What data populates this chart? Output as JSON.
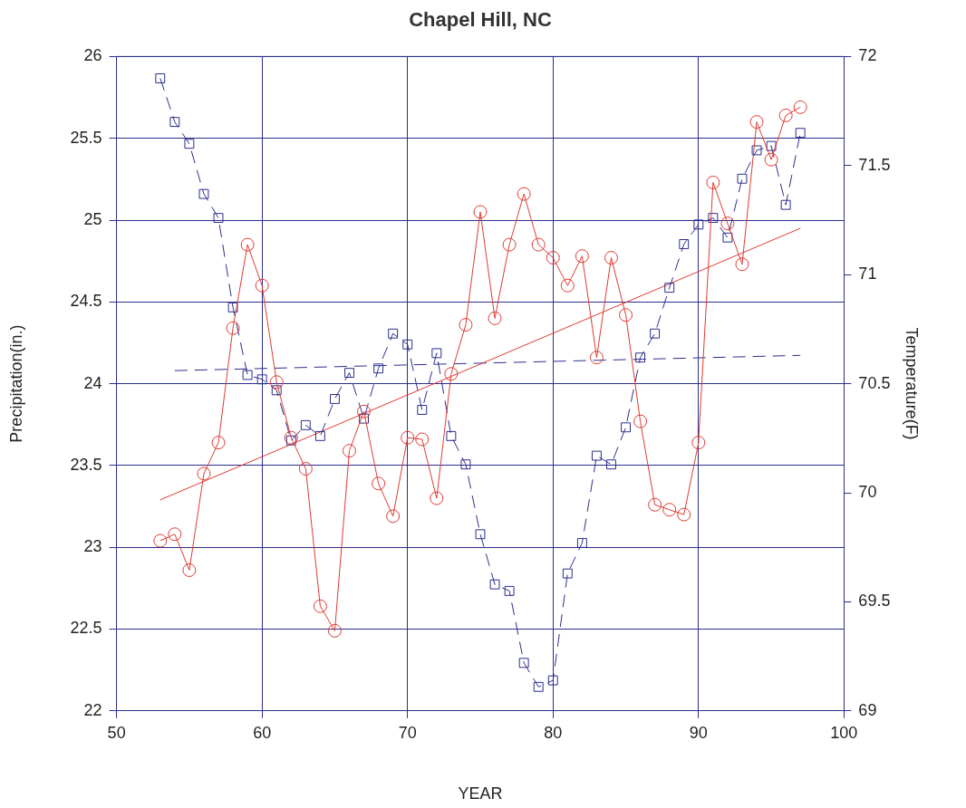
{
  "chart_data": {
    "type": "line",
    "title": "Chapel Hill, NC",
    "xlabel": "YEAR",
    "ylabel": "Precipitation(in.)",
    "y2label": "Temperature(F)",
    "xlim": [
      50,
      100
    ],
    "xticks": [
      50,
      60,
      70,
      80,
      90,
      100
    ],
    "ylim": [
      22,
      26
    ],
    "yticks": [
      22,
      22.5,
      23,
      23.5,
      24,
      24.5,
      25,
      25.5,
      26
    ],
    "y2lim": [
      69,
      72
    ],
    "y2ticks": [
      69,
      69.5,
      70,
      70.5,
      71,
      71.5,
      72
    ],
    "grid": true,
    "legend": false,
    "x": [
      53,
      54,
      55,
      56,
      57,
      58,
      59,
      60,
      61,
      62,
      63,
      64,
      65,
      66,
      67,
      68,
      69,
      70,
      71,
      72,
      73,
      74,
      75,
      76,
      77,
      78,
      79,
      80,
      81,
      82,
      83,
      84,
      85,
      86,
      87,
      88,
      89,
      90,
      91,
      92,
      93,
      94,
      95,
      96,
      97
    ],
    "series": [
      {
        "color": "#e03a32",
        "marker": "circle",
        "line_style": "solid",
        "values": [
          23.04,
          23.08,
          22.86,
          23.45,
          23.64,
          24.34,
          24.85,
          24.6,
          24.01,
          23.67,
          23.48,
          22.64,
          22.49,
          23.59,
          23.83,
          23.39,
          23.19,
          23.67,
          23.66,
          23.3,
          24.06,
          24.36,
          25.05,
          24.4,
          24.85,
          25.16,
          24.85,
          24.77,
          24.6,
          24.78,
          24.16,
          24.77,
          24.42,
          23.77,
          23.26,
          23.23,
          23.2,
          23.64,
          25.23,
          24.98,
          24.73,
          25.6,
          25.37,
          25.64,
          25.69
        ]
      },
      {
        "color": "#2b2e8c",
        "marker": "square",
        "line_style": "dashed",
        "axis": "y2",
        "values": [
          71.9,
          71.7,
          71.6,
          71.37,
          71.26,
          70.85,
          70.54,
          70.52,
          70.47,
          70.24,
          70.31,
          70.26,
          70.43,
          70.55,
          70.34,
          70.57,
          70.73,
          70.68,
          70.38,
          70.64,
          70.26,
          70.13,
          69.81,
          69.58,
          69.55,
          69.22,
          69.11,
          69.14,
          69.63,
          69.77,
          70.17,
          70.13,
          70.3,
          70.62,
          70.73,
          70.94,
          71.14,
          71.23,
          71.26,
          71.17,
          71.44,
          71.57,
          71.59,
          71.32,
          71.65
        ]
      },
      {
        "type": "line",
        "color": "#e03a32",
        "marker": "none",
        "line_style": "solid",
        "x": [
          53,
          97
        ],
        "values": [
          23.29,
          24.95
        ]
      },
      {
        "type": "line",
        "color": "#2b2e8c",
        "marker": "none",
        "line_style": "dashed",
        "axis": "y2",
        "x": [
          54,
          97
        ],
        "values": [
          70.56,
          70.63
        ]
      }
    ]
  }
}
